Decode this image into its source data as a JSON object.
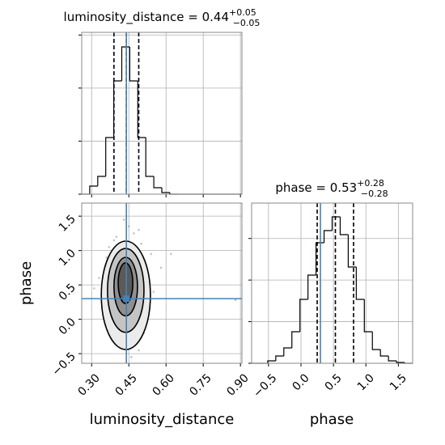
{
  "chart_data": [
    {
      "type": "histogram",
      "title": {
        "text": "luminosity_distance = 0.44",
        "upper": "+0.05",
        "lower": "−0.05"
      },
      "bins": [
        0.26,
        0.2923,
        0.3246,
        0.3569,
        0.3892,
        0.4215,
        0.4538,
        0.4861,
        0.5184,
        0.5507,
        0.583,
        0.6153,
        0.6476,
        0.6799,
        0.7122,
        0.7445,
        0.7768,
        0.8091,
        0.8414,
        0.8737,
        0.906
      ],
      "counts": [
        0,
        153,
        336,
        1068,
        2135,
        2776,
        2135,
        1068,
        336,
        122,
        31,
        0,
        0,
        0,
        0,
        0,
        0,
        0,
        0,
        0
      ],
      "xlim": [
        0.26,
        0.906
      ],
      "ylim": [
        0,
        3050
      ],
      "xticks": [
        {
          "value": 0.3,
          "label": "0.30"
        },
        0.45,
        {
          "value": 0.6,
          "label": "0.60"
        },
        0.75,
        {
          "value": 0.9,
          "label": "0.90"
        }
      ],
      "xtick_labels": false,
      "yticks": [
        0,
        1000,
        2000,
        3000
      ],
      "quantiles": [
        0.39,
        0.44,
        0.49
      ],
      "truth": 0.44,
      "grid": true,
      "color": "#000000",
      "truth_color": "#4682b4"
    },
    {
      "type": "scatter",
      "xlabel": "luminosity_distance",
      "ylabel": "phase",
      "x": [
        0.4,
        0.47,
        0.36,
        0.52,
        0.43,
        0.49,
        0.38,
        0.45,
        0.55,
        0.33,
        0.41,
        0.48,
        0.5,
        0.37,
        0.46,
        0.42,
        0.54,
        0.35,
        0.44,
        0.39,
        0.51,
        0.47,
        0.43,
        0.31,
        0.58,
        0.45,
        0.4,
        0.49,
        0.36,
        0.53,
        0.88,
        0.62
      ],
      "y": [
        1.2,
        1.25,
        0.9,
        0.7,
        -0.3,
        -0.45,
        0.1,
        1.35,
        0.4,
        0.6,
        -0.1,
        0.05,
        1.1,
        1.05,
        -0.55,
        0.3,
        0.95,
        0.2,
        0.8,
        1.15,
        -0.2,
        0.55,
        1.45,
        0.45,
        0.75,
        -0.4,
        0.0,
        1.3,
        -0.05,
        0.2,
        0.28,
        0.95
      ],
      "contours": [
        {
          "x": [
            0.339,
            0.537
          ],
          "y": [
            -0.44,
            1.137
          ],
          "fill": "#ebebeb"
        },
        {
          "x": [
            0.364,
            0.511
          ],
          "y": [
            -0.19,
            1.03
          ],
          "fill": "#c4c4c4"
        },
        {
          "x": [
            0.39,
            0.485
          ],
          "y": [
            0.05,
            0.9
          ],
          "fill": "#8f8f8f"
        },
        {
          "x": [
            0.407,
            0.466
          ],
          "y": [
            0.23,
            0.82
          ],
          "fill": "#5a5a5a"
        }
      ],
      "xlim": [
        0.26,
        0.906
      ],
      "ylim": [
        -0.64,
        1.69
      ],
      "xticks": [
        {
          "value": 0.3,
          "label": "0.30"
        },
        0.45,
        {
          "value": 0.6,
          "label": "0.60"
        },
        0.75,
        {
          "value": 0.9,
          "label": "0.90"
        }
      ],
      "yticks": [
        {
          "value": -0.5,
          "label": "−0.5"
        },
        {
          "value": 0,
          "label": "0.0"
        },
        0.5,
        {
          "value": 1,
          "label": "1.0"
        },
        1.5
      ],
      "truths": [
        0.44,
        0.3
      ],
      "grid": true,
      "color": "#888888",
      "truth_color": "#4682b4"
    },
    {
      "type": "histogram",
      "title": {
        "text": "phase = 0.53",
        "upper": "+0.28",
        "lower": "−0.28"
      },
      "xlabel": "phase",
      "bins": [
        -0.76,
        -0.636,
        -0.512,
        -0.388,
        -0.264,
        -0.14,
        -0.016,
        0.108,
        0.232,
        0.356,
        0.48,
        0.604,
        0.728,
        0.852,
        0.976,
        1.1,
        1.224,
        1.348,
        1.472,
        1.596,
        1.72
      ],
      "counts": [
        0,
        0,
        58,
        175,
        370,
        758,
        1536,
        2119,
        2897,
        3189,
        3519,
        3092,
        2314,
        1536,
        758,
        330,
        175,
        58,
        19,
        0
      ],
      "xlim": [
        -0.76,
        1.72
      ],
      "ylim": [
        0,
        3850
      ],
      "xticks": [
        {
          "value": -0.5,
          "label": "−0.5"
        },
        {
          "value": 0,
          "label": "0.0"
        },
        0.5,
        {
          "value": 1,
          "label": "1.0"
        },
        1.5
      ],
      "xtick_labels": true,
      "yticks": [
        0,
        1000,
        2000,
        3000
      ],
      "quantiles": [
        0.25,
        0.53,
        0.81
      ],
      "truth": 0.3,
      "grid": true,
      "color": "#000000",
      "truth_color": "#4682b4"
    }
  ]
}
